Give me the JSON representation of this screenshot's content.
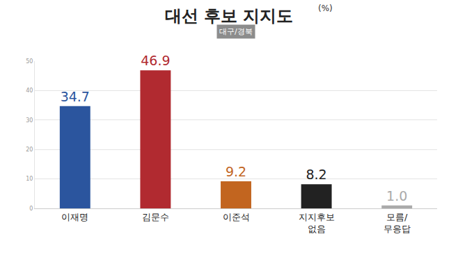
{
  "chart_data": {
    "type": "bar",
    "title": "대선 후보 지지도",
    "subtitle": "대구/경북",
    "annotations": [
      "(%)"
    ],
    "categories": [
      "이재명",
      "김문수",
      "이준석",
      "지지후보\n없음",
      "모름/\n무응답"
    ],
    "values": [
      34.7,
      46.9,
      9.2,
      8.2,
      1.0
    ],
    "value_labels": [
      "34.7",
      "46.9",
      "9.2",
      "8.2",
      "1.0"
    ],
    "colors": [
      "#2b559e",
      "#b12a30",
      "#c2651f",
      "#222222",
      "#aaaaaa"
    ],
    "ylim": [
      0,
      50
    ],
    "yticks": [
      0,
      10,
      20,
      30,
      40,
      50
    ],
    "grid": true,
    "data_labels": true
  }
}
